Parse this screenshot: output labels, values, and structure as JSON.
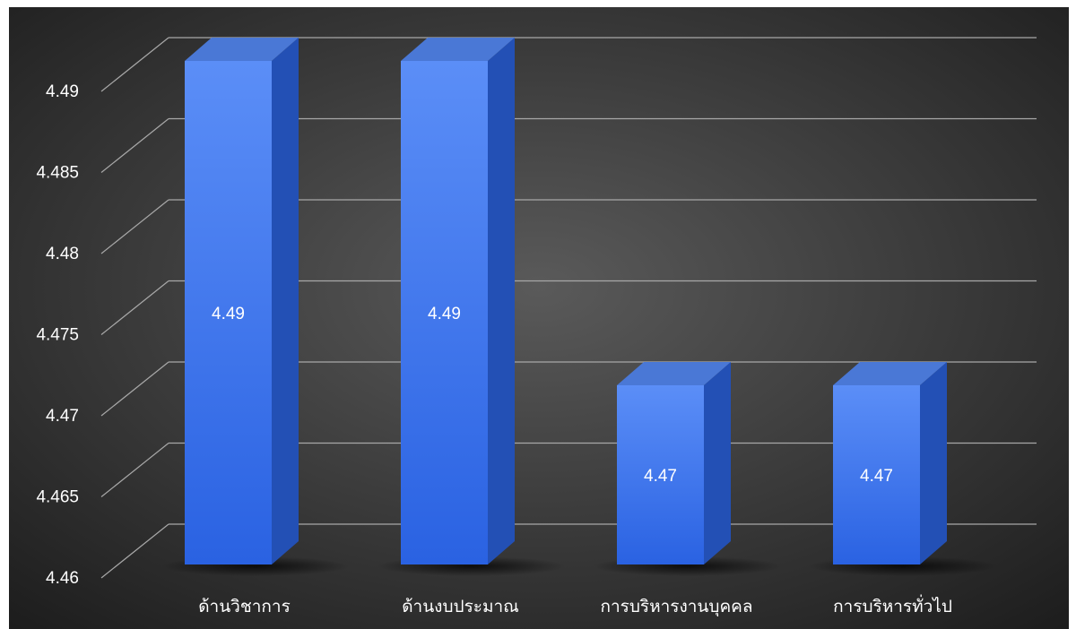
{
  "chart_data": {
    "type": "bar",
    "style": "3d-column",
    "categories": [
      "ด้านวิชาการ",
      "ด้านงบประมาณ",
      "การบริหารงานบุคคล",
      "การบริหารทั่วไป"
    ],
    "values": [
      4.49,
      4.49,
      4.47,
      4.47
    ],
    "value_labels": [
      "4.49",
      "4.49",
      "4.47",
      "4.47"
    ],
    "ylim": [
      4.46,
      4.49
    ],
    "yticks": [
      4.46,
      4.465,
      4.47,
      4.475,
      4.48,
      4.485,
      4.49
    ],
    "ytick_labels": [
      "4.46",
      "4.465",
      "4.47",
      "4.475",
      "4.48",
      "4.485",
      "4.49"
    ],
    "grid": true,
    "legend": "none",
    "colors": {
      "background_center": "#5a5a5a",
      "background_edge": "#1c1c1c",
      "bar_front_top": "#5b8ef7",
      "bar_front_bottom": "#2a62e2",
      "bar_side": "#2350b5",
      "bar_top": "#4a78d6",
      "grid": "#a8a8a8",
      "text": "#ffffff"
    }
  }
}
